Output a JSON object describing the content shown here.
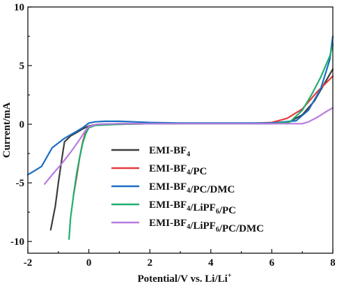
{
  "chart_data": {
    "type": "line",
    "xlabel": "Potential/V vs. Li/Li",
    "xlabel_sup": "+",
    "ylabel": "Current/mA",
    "xlim": [
      -2,
      8
    ],
    "ylim": [
      -11,
      10
    ],
    "xticks": [
      "-2",
      "0",
      "2",
      "4",
      "6",
      "8"
    ],
    "yticks": [
      "10",
      "5",
      "0",
      "-5",
      "-10"
    ],
    "legend_position": "center",
    "series": [
      {
        "name": "EMI-BF4",
        "label_parts": [
          {
            "t": "EMI-BF",
            "s": ""
          },
          {
            "t": "4",
            "s": "sub"
          }
        ],
        "color": "#3d3d3d",
        "x": [
          -1.25,
          -1.1,
          -1.0,
          -0.9,
          -0.8,
          -0.6,
          -0.4,
          -0.2,
          0.0,
          0.3,
          1.0,
          2.0,
          3.0,
          4.0,
          5.0,
          6.0,
          6.5,
          7.0,
          7.4,
          7.8,
          8.0
        ],
        "y": [
          -9.0,
          -7.0,
          -5.0,
          -3.2,
          -1.5,
          -1.0,
          -0.7,
          -0.4,
          -0.15,
          0.0,
          0.05,
          0.05,
          0.05,
          0.05,
          0.05,
          0.05,
          0.1,
          0.8,
          2.0,
          3.8,
          4.7
        ]
      },
      {
        "name": "EMI-BF4/PC",
        "label_parts": [
          {
            "t": "EMI-BF",
            "s": ""
          },
          {
            "t": "4",
            "s": "sub"
          },
          {
            "t": "/PC",
            "s": ""
          }
        ],
        "color": "#e53b3b",
        "x": [
          -0.5,
          -0.4,
          -0.3,
          -0.2,
          -0.1,
          0.0,
          0.2,
          1.0,
          2.0,
          3.0,
          4.0,
          5.0,
          6.0,
          6.5,
          7.0,
          7.5,
          8.0
        ],
        "y": [
          -6.0,
          -4.5,
          -2.8,
          -1.5,
          -0.6,
          -0.2,
          -0.05,
          0.0,
          0.05,
          0.05,
          0.05,
          0.05,
          0.15,
          0.5,
          1.3,
          2.8,
          4.1
        ]
      },
      {
        "name": "EMI-BF4/PC/DMC",
        "label_parts": [
          {
            "t": "EMI-BF",
            "s": ""
          },
          {
            "t": "4",
            "s": "sub"
          },
          {
            "t": "/PC/DMC",
            "s": ""
          }
        ],
        "color": "#1a6ec4",
        "x": [
          -2.0,
          -1.8,
          -1.55,
          -1.2,
          -0.8,
          -0.4,
          -0.2,
          0.0,
          0.2,
          0.5,
          1.0,
          1.5,
          2.0,
          3.0,
          4.0,
          5.0,
          6.0,
          6.8,
          7.2,
          7.6,
          7.9,
          8.0
        ],
        "y": [
          -4.3,
          -4.0,
          -3.6,
          -2.0,
          -1.2,
          -0.6,
          -0.3,
          0.1,
          0.2,
          0.25,
          0.25,
          0.2,
          0.15,
          0.1,
          0.1,
          0.1,
          0.1,
          0.3,
          1.2,
          3.0,
          5.5,
          7.5
        ]
      },
      {
        "name": "EMI-BF4/LiPF6/PC",
        "label_parts": [
          {
            "t": "EMI-BF",
            "s": ""
          },
          {
            "t": "4",
            "s": "sub"
          },
          {
            "t": "/LiPF",
            "s": ""
          },
          {
            "t": "6",
            "s": "sub"
          },
          {
            "t": "/PC",
            "s": ""
          }
        ],
        "color": "#1fae6e",
        "x": [
          -0.65,
          -0.6,
          -0.5,
          -0.4,
          -0.3,
          -0.2,
          -0.1,
          0.0,
          0.2,
          1.0,
          2.0,
          3.0,
          4.0,
          5.0,
          6.0,
          6.6,
          7.0,
          7.3,
          7.6,
          7.9,
          8.0
        ],
        "y": [
          -9.8,
          -8.0,
          -6.0,
          -4.2,
          -2.8,
          -1.6,
          -0.8,
          -0.3,
          -0.1,
          0.0,
          0.05,
          0.05,
          0.05,
          0.05,
          0.05,
          0.2,
          1.2,
          2.5,
          4.0,
          5.8,
          6.8
        ]
      },
      {
        "name": "EMI-BF4/LiPF6/PC/DMC",
        "label_parts": [
          {
            "t": "EMI-BF",
            "s": ""
          },
          {
            "t": "4",
            "s": "sub"
          },
          {
            "t": "/LiPF",
            "s": ""
          },
          {
            "t": "6",
            "s": "sub"
          },
          {
            "t": "/PC/DMC",
            "s": ""
          }
        ],
        "color": "#b77be0",
        "x": [
          -1.45,
          -1.2,
          -0.9,
          -0.6,
          -0.3,
          -0.1,
          0.0,
          0.3,
          1.0,
          2.0,
          3.0,
          4.0,
          5.0,
          6.0,
          6.5,
          7.0,
          7.2,
          7.5,
          7.8,
          8.0
        ],
        "y": [
          -5.1,
          -4.3,
          -3.4,
          -2.4,
          -1.3,
          -0.5,
          -0.2,
          0.0,
          0.05,
          0.05,
          0.05,
          0.05,
          0.05,
          0.05,
          0.05,
          0.05,
          0.2,
          0.6,
          1.1,
          1.4
        ]
      }
    ]
  }
}
